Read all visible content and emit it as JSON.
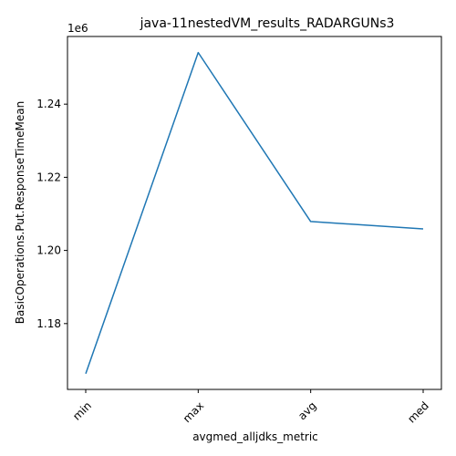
{
  "chart_data": {
    "type": "line",
    "title": "java-11nestedVM_results_RADARGUNs3",
    "xlabel": "avgmed_alljdks_metric",
    "ylabel": "BasicOperations.Put.ResponseTimeMean",
    "y_offset_label": "1e6",
    "categories": [
      "min",
      "max",
      "avg",
      "med"
    ],
    "values": [
      1166300,
      1254100,
      1207900,
      1205900
    ],
    "ylim": [
      1162000,
      1258500
    ],
    "yticks": [
      1.18,
      1.2,
      1.22,
      1.24
    ],
    "ytick_labels": [
      "1.18",
      "1.20",
      "1.22",
      "1.24"
    ],
    "ytick_scale": 1000000,
    "grid": false,
    "line_color": "#1f77b4"
  }
}
